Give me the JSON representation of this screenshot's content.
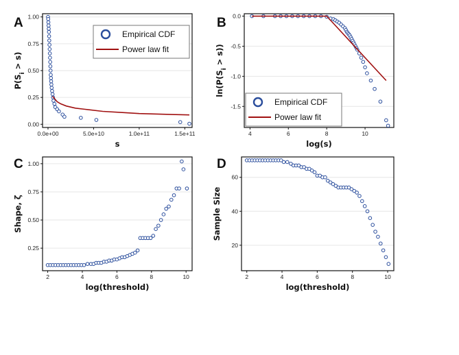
{
  "figure": {
    "panel_labels": [
      "A",
      "B",
      "C",
      "D"
    ],
    "colors": {
      "points": "#2a4d9c",
      "fit": "#a01010",
      "grid": "#e6e6e6",
      "frame": "#111111"
    }
  },
  "chart_data": [
    {
      "panel": "A",
      "type": "scatter",
      "xlabel": "s",
      "ylabel": "P(S_i > s)",
      "ylabel_main": "P(S",
      "ylabel_sub": "i",
      "ylabel_rest": " > s)",
      "xlim": [
        -6000000000,
        158000000000
      ],
      "ylim": [
        -0.03,
        1.03
      ],
      "xticks": [
        0,
        50000000000,
        100000000000,
        150000000000
      ],
      "xtick_labels": [
        "0.0e+00",
        "5.0e+10",
        "1.0e+11",
        "1.5e+11"
      ],
      "yticks": [
        0,
        0.25,
        0.5,
        0.75,
        1.0
      ],
      "ytick_labels": [
        "0.00",
        "0.25",
        "0.50",
        "0.75",
        "1.00"
      ],
      "grid": true,
      "legend": {
        "position": "top-right",
        "entries": [
          "Empirical CDF",
          "Power law fit"
        ]
      },
      "series": [
        {
          "name": "Empirical CDF",
          "style": "points",
          "x": [
            0,
            200000000,
            400000000,
            600000000,
            800000000,
            1000000000,
            1200000000,
            1400000000,
            1600000000,
            1800000000,
            2000000000,
            2200000000,
            2400000000,
            2600000000,
            2800000000,
            3000000000,
            3200000000,
            3400000000,
            3700000000,
            4000000000,
            4500000000,
            5000000000,
            5500000000,
            6000000000,
            7000000000,
            8000000000,
            10000000000,
            12000000000,
            16000000000,
            18000000000,
            36000000000,
            53000000000,
            145000000000,
            155000000000
          ],
          "y": [
            1.0,
            0.98,
            0.95,
            0.92,
            0.89,
            0.86,
            0.82,
            0.78,
            0.74,
            0.7,
            0.66,
            0.62,
            0.58,
            0.54,
            0.5,
            0.46,
            0.43,
            0.4,
            0.37,
            0.34,
            0.31,
            0.28,
            0.25,
            0.22,
            0.19,
            0.16,
            0.14,
            0.12,
            0.09,
            0.07,
            0.06,
            0.04,
            0.02,
            0.005
          ]
        },
        {
          "name": "Power law fit",
          "style": "line",
          "x": [
            5000000000,
            6000000000,
            8000000000,
            10000000000,
            14000000000,
            20000000000,
            30000000000,
            40000000000,
            60000000000,
            80000000000,
            100000000000,
            120000000000,
            140000000000,
            155000000000
          ],
          "y": [
            0.26,
            0.25,
            0.23,
            0.21,
            0.19,
            0.17,
            0.15,
            0.14,
            0.12,
            0.11,
            0.1,
            0.095,
            0.09,
            0.087
          ]
        }
      ]
    },
    {
      "panel": "B",
      "type": "scatter",
      "xlabel": "log(s)",
      "ylabel": "ln(P(S_i > s))",
      "ylabel_main": "ln(P(S",
      "ylabel_sub": "i",
      "ylabel_rest": " > s))",
      "xlim": [
        3.7,
        11.5
      ],
      "ylim": [
        -1.85,
        0.04
      ],
      "xticks": [
        4,
        6,
        8,
        10
      ],
      "xtick_labels": [
        "4",
        "6",
        "8",
        "10"
      ],
      "yticks": [
        0,
        -0.5,
        -1.0,
        -1.5
      ],
      "ytick_labels": [
        "0.0",
        "-0.5",
        "-1.0",
        "-1.5"
      ],
      "grid": true,
      "legend": {
        "position": "bottom-left",
        "entries": [
          "Empirical CDF",
          "Power law fit"
        ]
      },
      "series": [
        {
          "name": "Empirical CDF",
          "style": "points",
          "x": [
            4.1,
            4.7,
            5.3,
            5.6,
            5.9,
            6.2,
            6.5,
            6.8,
            7.1,
            7.4,
            7.7,
            8.0,
            8.2,
            8.35,
            8.45,
            8.55,
            8.65,
            8.75,
            8.85,
            8.95,
            9.0,
            9.05,
            9.1,
            9.15,
            9.2,
            9.25,
            9.3,
            9.35,
            9.4,
            9.45,
            9.5,
            9.55,
            9.6,
            9.7,
            9.8,
            9.9,
            10.0,
            10.1,
            10.3,
            10.5,
            10.8,
            11.1,
            11.2
          ],
          "y": [
            0,
            0,
            0,
            0,
            0,
            0,
            0,
            0,
            0,
            0,
            0,
            -0.01,
            -0.04,
            -0.05,
            -0.07,
            -0.09,
            -0.11,
            -0.14,
            -0.17,
            -0.2,
            -0.23,
            -0.26,
            -0.28,
            -0.3,
            -0.32,
            -0.35,
            -0.38,
            -0.41,
            -0.44,
            -0.47,
            -0.5,
            -0.53,
            -0.56,
            -0.62,
            -0.69,
            -0.76,
            -0.85,
            -0.95,
            -1.07,
            -1.21,
            -1.42,
            -1.73,
            -1.82
          ]
        },
        {
          "name": "Power law fit",
          "style": "line",
          "x": [
            4.1,
            8.0,
            11.1
          ],
          "y": [
            0,
            0,
            -1.07
          ]
        }
      ]
    },
    {
      "panel": "C",
      "type": "scatter",
      "xlabel": "log(threshold)",
      "ylabel": "Shape, ζ",
      "xlim": [
        1.7,
        10.35
      ],
      "ylim": [
        0.05,
        1.06
      ],
      "xticks": [
        2,
        4,
        6,
        8,
        10
      ],
      "xtick_labels": [
        "2",
        "4",
        "6",
        "8",
        "10"
      ],
      "yticks": [
        0.25,
        0.5,
        0.75,
        1.0
      ],
      "ytick_labels": [
        "0.25",
        "0.50",
        "0.75",
        "1.00"
      ],
      "grid": true,
      "series": [
        {
          "name": "Shape",
          "style": "points",
          "x": [
            2.0,
            2.15,
            2.3,
            2.45,
            2.6,
            2.75,
            2.9,
            3.05,
            3.2,
            3.35,
            3.5,
            3.65,
            3.8,
            3.95,
            4.1,
            4.3,
            4.5,
            4.65,
            4.8,
            4.95,
            5.1,
            5.25,
            5.4,
            5.55,
            5.7,
            5.85,
            6.0,
            6.15,
            6.3,
            6.45,
            6.6,
            6.75,
            6.9,
            7.05,
            7.2,
            7.35,
            7.5,
            7.65,
            7.8,
            7.95,
            8.1,
            8.25,
            8.4,
            8.55,
            8.7,
            8.85,
            9.0,
            9.15,
            9.3,
            9.45,
            9.6,
            9.75,
            9.85,
            10.05
          ],
          "y": [
            0.1,
            0.1,
            0.1,
            0.1,
            0.1,
            0.1,
            0.1,
            0.1,
            0.1,
            0.1,
            0.1,
            0.1,
            0.1,
            0.1,
            0.1,
            0.11,
            0.11,
            0.11,
            0.12,
            0.12,
            0.12,
            0.13,
            0.13,
            0.14,
            0.14,
            0.15,
            0.15,
            0.16,
            0.17,
            0.17,
            0.18,
            0.19,
            0.2,
            0.21,
            0.23,
            0.34,
            0.34,
            0.34,
            0.34,
            0.34,
            0.36,
            0.42,
            0.45,
            0.5,
            0.55,
            0.6,
            0.62,
            0.68,
            0.72,
            0.78,
            0.78,
            1.02,
            0.95,
            0.78
          ]
        }
      ]
    },
    {
      "panel": "D",
      "type": "scatter",
      "xlabel": "log(threshold)",
      "ylabel": "Sample Size",
      "xlim": [
        1.7,
        10.35
      ],
      "ylim": [
        5,
        72
      ],
      "xticks": [
        2,
        4,
        6,
        8,
        10
      ],
      "xtick_labels": [
        "2",
        "4",
        "6",
        "8",
        "10"
      ],
      "yticks": [
        20,
        40,
        60
      ],
      "ytick_labels": [
        "20",
        "40",
        "60"
      ],
      "grid": true,
      "series": [
        {
          "name": "Sample Size",
          "style": "points",
          "x": [
            2.0,
            2.15,
            2.3,
            2.45,
            2.6,
            2.75,
            2.9,
            3.05,
            3.2,
            3.35,
            3.5,
            3.65,
            3.8,
            3.95,
            4.1,
            4.3,
            4.5,
            4.65,
            4.8,
            4.95,
            5.1,
            5.25,
            5.4,
            5.55,
            5.7,
            5.85,
            6.0,
            6.15,
            6.3,
            6.45,
            6.6,
            6.75,
            6.9,
            7.05,
            7.2,
            7.35,
            7.5,
            7.65,
            7.8,
            7.95,
            8.1,
            8.25,
            8.4,
            8.55,
            8.7,
            8.85,
            9.0,
            9.15,
            9.3,
            9.45,
            9.6,
            9.75,
            9.9,
            10.05
          ],
          "y": [
            70,
            70,
            70,
            70,
            70,
            70,
            70,
            70,
            70,
            70,
            70,
            70,
            70,
            70,
            69,
            69,
            68,
            67,
            67,
            67,
            66,
            66,
            65,
            65,
            64,
            63,
            61,
            61,
            60,
            60,
            58,
            57,
            56,
            55,
            54,
            54,
            54,
            54,
            54,
            53,
            52,
            51,
            49,
            46,
            43,
            40,
            36,
            32,
            28,
            25,
            21,
            17,
            13,
            9
          ]
        }
      ]
    }
  ]
}
